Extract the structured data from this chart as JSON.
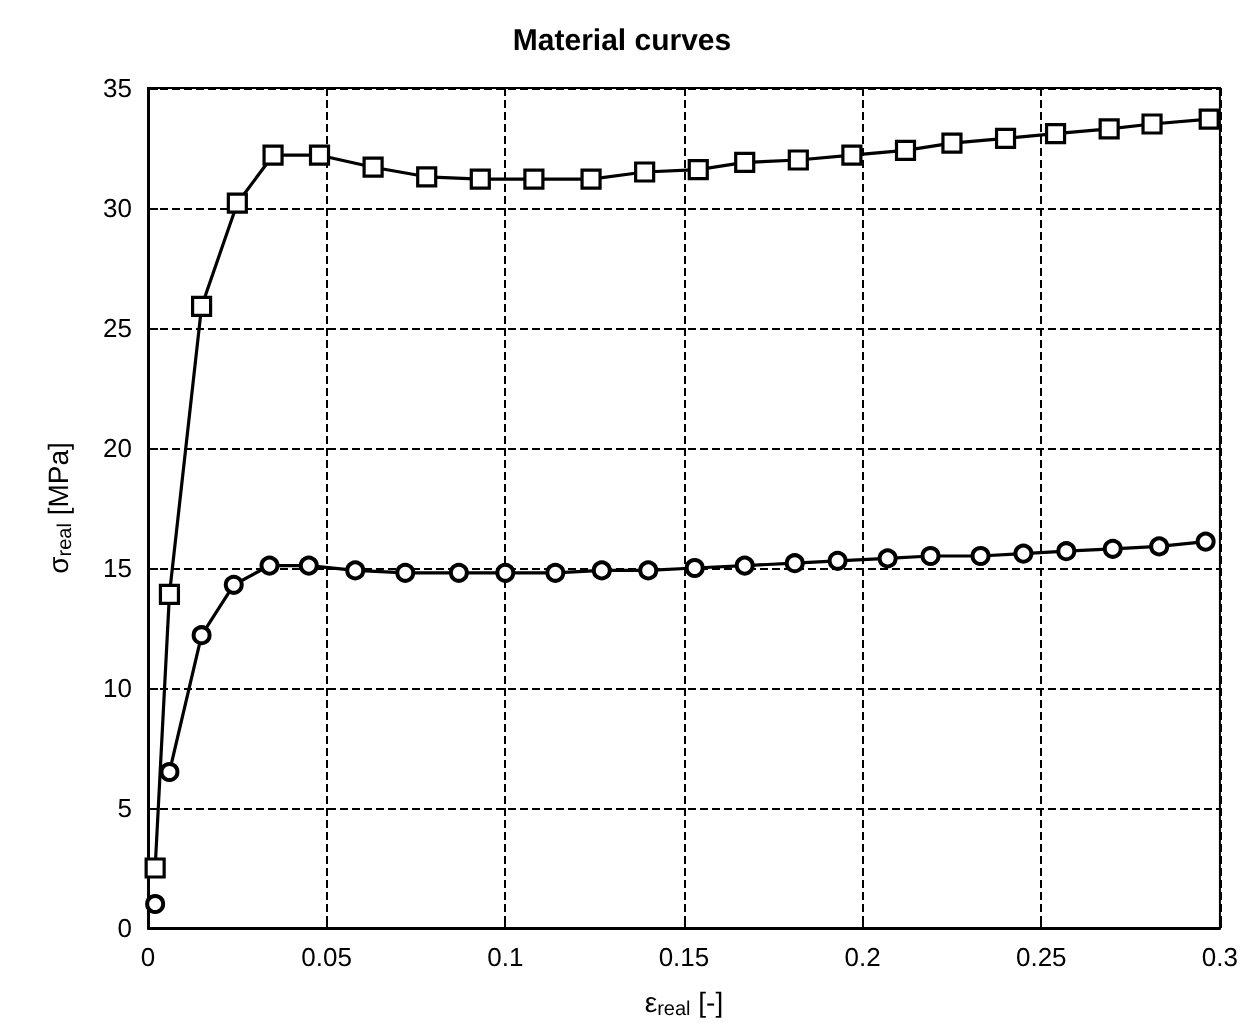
{
  "chart_data": {
    "type": "line",
    "title": "Material curves",
    "xlabel": "ε$_{real}$ [-]",
    "ylabel": "σ$_{real}$ [MPa]",
    "xlim": [
      0,
      0.3
    ],
    "xticks": [
      0,
      0.05,
      0.1,
      0.15,
      0.2,
      0.25,
      0.3
    ],
    "ylim": [
      0,
      35
    ],
    "yticks": [
      0,
      5,
      10,
      15,
      20,
      25,
      30,
      35
    ],
    "grid": true,
    "line_style": "solid",
    "series": [
      {
        "color": "#000000",
        "marker": "circle",
        "x": [
          0.002,
          0.004,
          0.006,
          0.015,
          0.024,
          0.034,
          0.045,
          0.058,
          0.072,
          0.087,
          0.1,
          0.114,
          0.127,
          0.14,
          0.153,
          0.167,
          0.181,
          0.193,
          0.207,
          0.219,
          0.233,
          0.245,
          0.257,
          0.27,
          0.283,
          0.296
        ],
        "values": [
          1.0,
          null,
          6.5,
          12.2,
          14.3,
          15.1,
          15.1,
          14.9,
          14.8,
          14.8,
          14.8,
          14.8,
          14.9,
          14.9,
          15.0,
          15.1,
          15.2,
          15.3,
          15.4,
          15.5,
          15.5,
          15.6,
          15.7,
          15.8,
          15.9,
          16.1
        ]
      },
      {
        "color": "#000000",
        "marker": "square",
        "x": [
          0.002,
          0.006,
          0.015,
          0.025,
          0.035,
          0.048,
          0.063,
          0.078,
          0.093,
          0.108,
          0.124,
          0.139,
          0.154,
          0.167,
          0.182,
          0.197,
          0.212,
          0.225,
          0.24,
          0.254,
          0.269,
          0.281,
          0.297
        ],
        "values": [
          2.5,
          13.9,
          25.9,
          30.2,
          32.2,
          32.2,
          31.7,
          31.3,
          31.2,
          31.2,
          31.2,
          31.5,
          31.6,
          31.9,
          32.0,
          32.2,
          32.4,
          32.7,
          32.9,
          33.1,
          33.3,
          33.5,
          33.7
        ]
      }
    ]
  }
}
